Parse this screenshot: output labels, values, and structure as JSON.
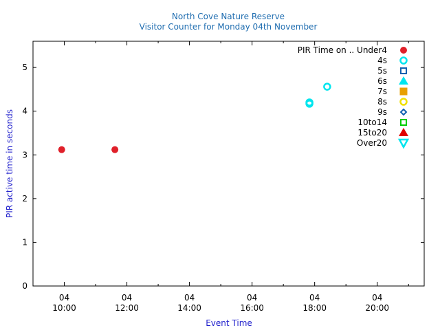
{
  "chart_data": {
    "type": "scatter",
    "title": "North Cove Nature Reserve",
    "subtitle": "Visitor Counter for Monday 04th November",
    "xlabel": "Event Time",
    "ylabel": "PIR active time in seconds",
    "xlim": [
      "09:00",
      "21:30"
    ],
    "ylim": [
      0,
      5.6
    ],
    "y_ticks": [
      0,
      1,
      2,
      3,
      4,
      5
    ],
    "x_ticks": [
      {
        "day": "04",
        "time": "10:00"
      },
      {
        "day": "04",
        "time": "12:00"
      },
      {
        "day": "04",
        "time": "14:00"
      },
      {
        "day": "04",
        "time": "16:00"
      },
      {
        "day": "04",
        "time": "18:00"
      },
      {
        "day": "04",
        "time": "20:00"
      }
    ],
    "legend_title": "PIR Time on ..",
    "legend_position": "top-right",
    "grid": false,
    "series": [
      {
        "name": "Under4",
        "marker": "filled-circle",
        "color": "#e0202a",
        "points": [
          {
            "x": "09:55",
            "y": 3.12
          },
          {
            "x": "11:37",
            "y": 3.12
          }
        ]
      },
      {
        "name": "4s",
        "marker": "open-circle",
        "color": "#00e5ee",
        "points": [
          {
            "x": "17:50",
            "y": 4.2
          },
          {
            "x": "17:50",
            "y": 4.17
          },
          {
            "x": "18:24",
            "y": 4.56
          }
        ]
      },
      {
        "name": "5s",
        "marker": "open-square",
        "color": "#1060b0",
        "points": []
      },
      {
        "name": "6s",
        "marker": "filled-triangle-up",
        "color": "#00e5ee",
        "points": []
      },
      {
        "name": "7s",
        "marker": "filled-square",
        "color": "#e8a000",
        "points": []
      },
      {
        "name": "8s",
        "marker": "open-circle",
        "color": "#f0e000",
        "points": []
      },
      {
        "name": "9s",
        "marker": "open-diamond",
        "color": "#1060b0",
        "points": []
      },
      {
        "name": "10to14",
        "marker": "open-square",
        "color": "#00cc00",
        "points": []
      },
      {
        "name": "15to20",
        "marker": "filled-triangle-up",
        "color": "#e00000",
        "points": []
      },
      {
        "name": "Over20",
        "marker": "open-triangle-down",
        "color": "#00e5ee",
        "points": []
      }
    ]
  }
}
